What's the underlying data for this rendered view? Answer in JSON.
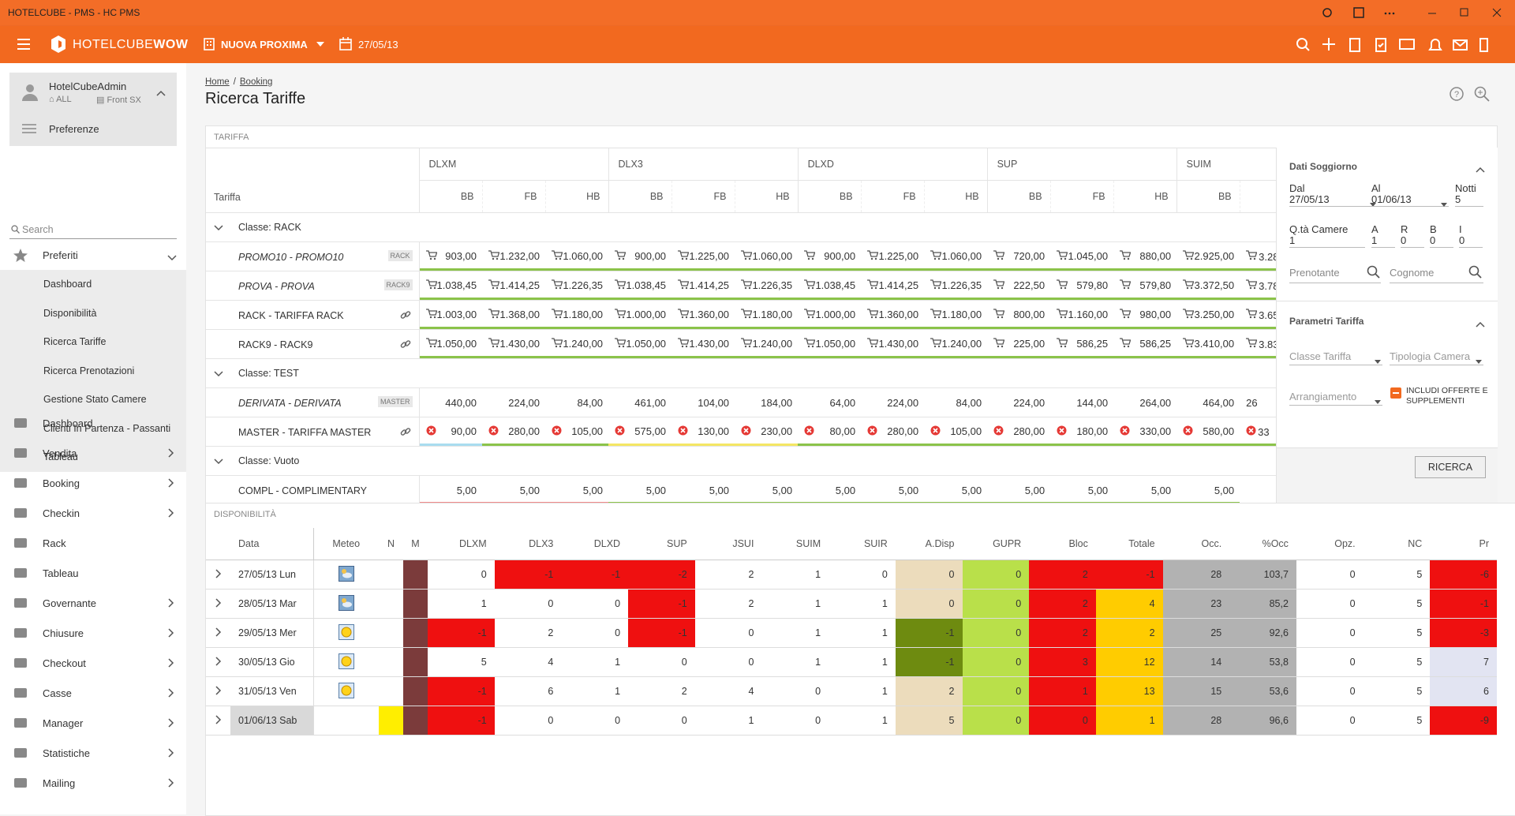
{
  "window": {
    "title": "HOTELCUBE - PMS - HC PMS"
  },
  "appbar": {
    "brand_light": "HOTELCUBE",
    "brand_bold": "WOW",
    "property": "NUOVA PROXIMA",
    "date": "27/05/13"
  },
  "sidebar": {
    "user": "HotelCubeAdmin",
    "scope": "ALL",
    "station": "Front SX",
    "preferences": "Preferenze",
    "search_placeholder": "Search",
    "favorites": {
      "label": "Preferiti",
      "items": [
        "Dashboard",
        "Disponibilità",
        "Ricerca Tariffe",
        "Ricerca Prenotazioni",
        "Gestione Stato Camere",
        "Clienti In Partenza - Passanti",
        "Tableau"
      ]
    },
    "menu": [
      {
        "label": "Dashboard",
        "submenu": false
      },
      {
        "label": "Vendita",
        "submenu": true
      },
      {
        "label": "Booking",
        "submenu": true
      },
      {
        "label": "Checkin",
        "submenu": true
      },
      {
        "label": "Rack",
        "submenu": false
      },
      {
        "label": "Tableau",
        "submenu": false
      },
      {
        "label": "Governante",
        "submenu": true
      },
      {
        "label": "Chiusure",
        "submenu": true
      },
      {
        "label": "Checkout",
        "submenu": true
      },
      {
        "label": "Casse",
        "submenu": true
      },
      {
        "label": "Manager",
        "submenu": true
      },
      {
        "label": "Statistiche",
        "submenu": true
      },
      {
        "label": "Mailing",
        "submenu": true
      }
    ]
  },
  "breadcrumb": [
    "Home",
    "Booking"
  ],
  "title": "Ricerca Tariffe",
  "tariffe": {
    "section": "TARIFFA",
    "column_label": "Tariffa",
    "rooms": [
      {
        "name": "DLXM",
        "boards": [
          "BB",
          "FB",
          "HB"
        ]
      },
      {
        "name": "DLX3",
        "boards": [
          "BB",
          "FB",
          "HB"
        ]
      },
      {
        "name": "DLXD",
        "boards": [
          "BB",
          "FB",
          "HB"
        ]
      },
      {
        "name": "SUP",
        "boards": [
          "BB",
          "FB",
          "HB"
        ]
      },
      {
        "name": "SUIM",
        "boards": [
          "BB"
        ]
      }
    ],
    "groups": [
      {
        "label": "Classe: RACK",
        "rows": [
          {
            "name": "PROMO10 - PROMO10",
            "italic": true,
            "tag": "RACK",
            "link": false,
            "icon": "cart",
            "values": [
              "903,00",
              "1.232,00",
              "1.060,00",
              "900,00",
              "1.225,00",
              "1.060,00",
              "900,00",
              "1.225,00",
              "1.060,00",
              "720,00",
              "1.045,00",
              "880,00",
              "2.925,00",
              "3.28"
            ]
          },
          {
            "name": "PROVA - PROVA",
            "italic": true,
            "tag": "RACK9",
            "link": false,
            "icon": "cart",
            "values": [
              "1.038,45",
              "1.414,25",
              "1.226,35",
              "1.038,45",
              "1.414,25",
              "1.226,35",
              "1.038,45",
              "1.414,25",
              "1.226,35",
              "222,50",
              "579,80",
              "579,80",
              "3.372,50",
              "3.78"
            ]
          },
          {
            "name": "RACK - TARIFFA RACK",
            "italic": false,
            "tag": null,
            "link": true,
            "icon": "cart",
            "values": [
              "1.003,00",
              "1.368,00",
              "1.180,00",
              "1.000,00",
              "1.360,00",
              "1.180,00",
              "1.000,00",
              "1.360,00",
              "1.180,00",
              "800,00",
              "1.160,00",
              "980,00",
              "3.250,00",
              "3.65"
            ]
          },
          {
            "name": "RACK9 - RACK9",
            "italic": false,
            "tag": null,
            "link": true,
            "icon": "cart",
            "values": [
              "1.050,00",
              "1.430,00",
              "1.240,00",
              "1.050,00",
              "1.430,00",
              "1.240,00",
              "1.050,00",
              "1.430,00",
              "1.240,00",
              "225,00",
              "586,25",
              "586,25",
              "3.410,00",
              "3.83"
            ]
          }
        ]
      },
      {
        "label": "Classe: TEST",
        "rows": [
          {
            "name": "DERIVATA - DERIVATA",
            "italic": true,
            "tag": "MASTER",
            "link": false,
            "icon": null,
            "values": [
              "440,00",
              "224,00",
              "84,00",
              "461,00",
              "104,00",
              "184,00",
              "64,00",
              "224,00",
              "84,00",
              "224,00",
              "144,00",
              "264,00",
              "464,00",
              "26"
            ]
          },
          {
            "name": "MASTER - TARIFFA MASTER",
            "italic": false,
            "tag": null,
            "link": true,
            "icon": "x",
            "values": [
              "90,00",
              "280,00",
              "105,00",
              "575,00",
              "130,00",
              "230,00",
              "80,00",
              "280,00",
              "105,00",
              "280,00",
              "180,00",
              "330,00",
              "580,00",
              "33"
            ]
          }
        ]
      },
      {
        "label": "Classe: Vuoto",
        "rows": [
          {
            "name": "COMPL - COMPLIMENTARY",
            "italic": false,
            "tag": null,
            "link": false,
            "icon": null,
            "values": [
              "5,00",
              "5,00",
              "5,00",
              "5,00",
              "5,00",
              "5,00",
              "5,00",
              "5,00",
              "5,00",
              "5,00",
              "5,00",
              "5,00",
              "5,00"
            ]
          }
        ]
      }
    ]
  },
  "search_panel": {
    "stay": {
      "title": "Dati Soggiorno",
      "from_label": "Dal",
      "from": "27/05/13",
      "to_label": "Al",
      "to": "01/06/13",
      "nights_label": "Notti",
      "nights": "5",
      "rooms_label": "Q.tà Camere",
      "rooms": "1",
      "guests": [
        {
          "label": "A",
          "value": "1"
        },
        {
          "label": "R",
          "value": "0"
        },
        {
          "label": "B",
          "value": "0"
        },
        {
          "label": "I",
          "value": "0"
        }
      ],
      "booker": "Prenotante",
      "surname": "Cognome"
    },
    "params": {
      "title": "Parametri Tariffa",
      "rate_class": "Classe Tariffa",
      "room_type": "Tipologia Camera",
      "arrangement": "Arrangiamento",
      "include": "INCLUDI OFFERTE E SUPPLEMENTI"
    },
    "button": "RICERCA"
  },
  "disponibilita": {
    "section": "DISPONIBILITÀ",
    "columns": [
      "Data",
      "Meteo",
      "N",
      "M",
      "DLXM",
      "DLX3",
      "DLXD",
      "SUP",
      "JSUI",
      "SUIM",
      "SUIR",
      "A.Disp",
      "GUPR",
      "Bloc",
      "Totale",
      "Occ.",
      "%Occ",
      "Opz.",
      "NC",
      "Pr"
    ],
    "rows": [
      {
        "date": "27/05/13 Lun",
        "weather": "cloud",
        "values": [
          "0",
          "-1",
          "-1",
          "-2",
          "2",
          "1",
          "0",
          "0",
          "0",
          "2",
          "-1",
          "28",
          "103,7",
          "0",
          "5",
          "-6"
        ]
      },
      {
        "date": "28/05/13 Mar",
        "weather": "cloud",
        "values": [
          "1",
          "0",
          "0",
          "-1",
          "2",
          "1",
          "1",
          "0",
          "0",
          "2",
          "4",
          "23",
          "85,2",
          "0",
          "5",
          "-1"
        ]
      },
      {
        "date": "29/05/13 Mer",
        "weather": "sun",
        "values": [
          "-1",
          "2",
          "0",
          "-1",
          "0",
          "1",
          "1",
          "-1",
          "0",
          "2",
          "2",
          "25",
          "92,6",
          "0",
          "5",
          "-3"
        ]
      },
      {
        "date": "30/05/13 Gio",
        "weather": "sun",
        "values": [
          "5",
          "4",
          "1",
          "0",
          "0",
          "1",
          "1",
          "-1",
          "0",
          "3",
          "12",
          "14",
          "53,8",
          "0",
          "5",
          "7"
        ]
      },
      {
        "date": "31/05/13 Ven",
        "weather": "sun",
        "values": [
          "-1",
          "6",
          "1",
          "2",
          "4",
          "0",
          "1",
          "2",
          "0",
          "1",
          "13",
          "15",
          "53,6",
          "0",
          "5",
          "6"
        ]
      },
      {
        "date": "01/06/13 Sab",
        "weather": null,
        "values": [
          "-1",
          "0",
          "0",
          "0",
          "1",
          "0",
          "1",
          "5",
          "0",
          "0",
          "1",
          "28",
          "96,6",
          "0",
          "5",
          "-9"
        ]
      }
    ]
  }
}
